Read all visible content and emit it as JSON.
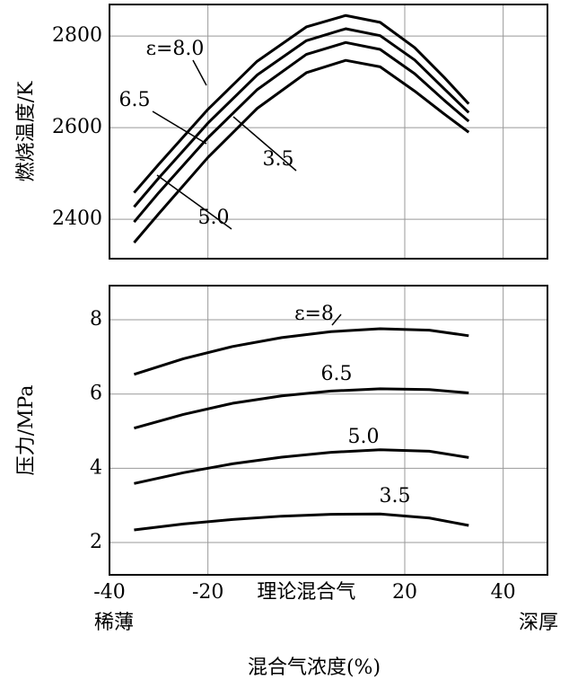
{
  "chart_data": [
    {
      "type": "line",
      "ylabel": "燃烧温度/K",
      "x": [
        -35,
        -30,
        -20,
        -10,
        0,
        8,
        15,
        22,
        28,
        33
      ],
      "series": [
        {
          "name": "ε=8.0",
          "color": "#000000",
          "values": [
            2458,
            2520,
            2640,
            2745,
            2820,
            2845,
            2830,
            2775,
            2710,
            2652
          ]
        },
        {
          "name": "6.5",
          "color": "#000000",
          "values": [
            2427,
            2490,
            2610,
            2715,
            2790,
            2816,
            2801,
            2748,
            2685,
            2633
          ]
        },
        {
          "name": "5.0",
          "color": "#000000",
          "values": [
            2394,
            2458,
            2578,
            2683,
            2760,
            2786,
            2771,
            2718,
            2660,
            2614
          ]
        },
        {
          "name": "3.5",
          "color": "#000000",
          "values": [
            2349,
            2412,
            2535,
            2642,
            2720,
            2747,
            2733,
            2680,
            2630,
            2590
          ]
        }
      ],
      "xlim": [
        -40,
        49
      ],
      "ylim": [
        2314,
        2869
      ],
      "yticks": [
        2400,
        2600,
        2800
      ],
      "grid": true
    },
    {
      "type": "line",
      "ylabel": "压力/MPa",
      "xlabel": "混合气浓度(%)",
      "annotations": [
        "理论混合气",
        "稀薄",
        "深厚"
      ],
      "x": [
        -35,
        -25,
        -15,
        -5,
        5,
        15,
        25,
        33
      ],
      "series": [
        {
          "name": "ε=8",
          "color": "#000000",
          "values": [
            6.53,
            6.95,
            7.28,
            7.52,
            7.68,
            7.76,
            7.72,
            7.57
          ]
        },
        {
          "name": "6.5",
          "color": "#000000",
          "values": [
            5.08,
            5.45,
            5.75,
            5.95,
            6.08,
            6.14,
            6.12,
            6.03
          ]
        },
        {
          "name": "5.0",
          "color": "#000000",
          "values": [
            3.59,
            3.88,
            4.12,
            4.3,
            4.43,
            4.5,
            4.46,
            4.29
          ]
        },
        {
          "name": "3.5",
          "color": "#000000",
          "values": [
            2.34,
            2.5,
            2.62,
            2.71,
            2.76,
            2.77,
            2.66,
            2.46
          ]
        }
      ],
      "xlim": [
        -40,
        49
      ],
      "xticks": [
        -40,
        -20,
        20,
        40
      ],
      "ylim": [
        1.13,
        8.92
      ],
      "yticks": [
        2,
        4,
        6,
        8
      ],
      "grid": true
    }
  ]
}
